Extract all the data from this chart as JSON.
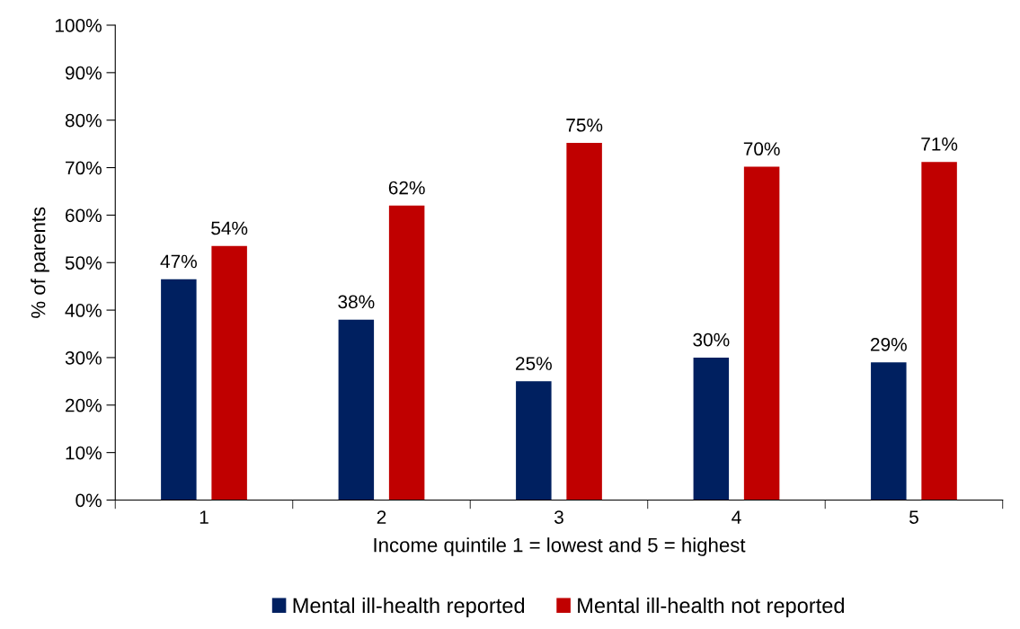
{
  "chart_data": {
    "type": "bar",
    "xlabel": "Income quintile 1 = lowest and 5 = highest",
    "ylabel": "% of parents",
    "categories": [
      "1",
      "2",
      "3",
      "4",
      "5"
    ],
    "series": [
      {
        "name": "Mental ill-health reported",
        "color": "#002060",
        "values": [
          46.5,
          38,
          25,
          30,
          29
        ],
        "value_labels": [
          "47%",
          "38%",
          "25%",
          "30%",
          "29%"
        ]
      },
      {
        "name": "Mental ill-health not reported",
        "color": "#c00000",
        "values": [
          53.5,
          62,
          75.2,
          70.2,
          71.2
        ],
        "value_labels": [
          "54%",
          "62%",
          "75%",
          "70%",
          "71%"
        ]
      }
    ],
    "ylim": [
      0,
      100
    ],
    "yticks": [
      {
        "value": 0,
        "label": "0%"
      },
      {
        "value": 10,
        "label": "10%"
      },
      {
        "value": 20,
        "label": "20%"
      },
      {
        "value": 30,
        "label": "30%"
      },
      {
        "value": 40,
        "label": "40%"
      },
      {
        "value": 50,
        "label": "50%"
      },
      {
        "value": 60,
        "label": "60%"
      },
      {
        "value": 70,
        "label": "70%"
      },
      {
        "value": 80,
        "label": "80%"
      },
      {
        "value": 90,
        "label": "90%"
      },
      {
        "value": 100,
        "label": "100%"
      }
    ],
    "grid": false,
    "legend": "bottom"
  }
}
